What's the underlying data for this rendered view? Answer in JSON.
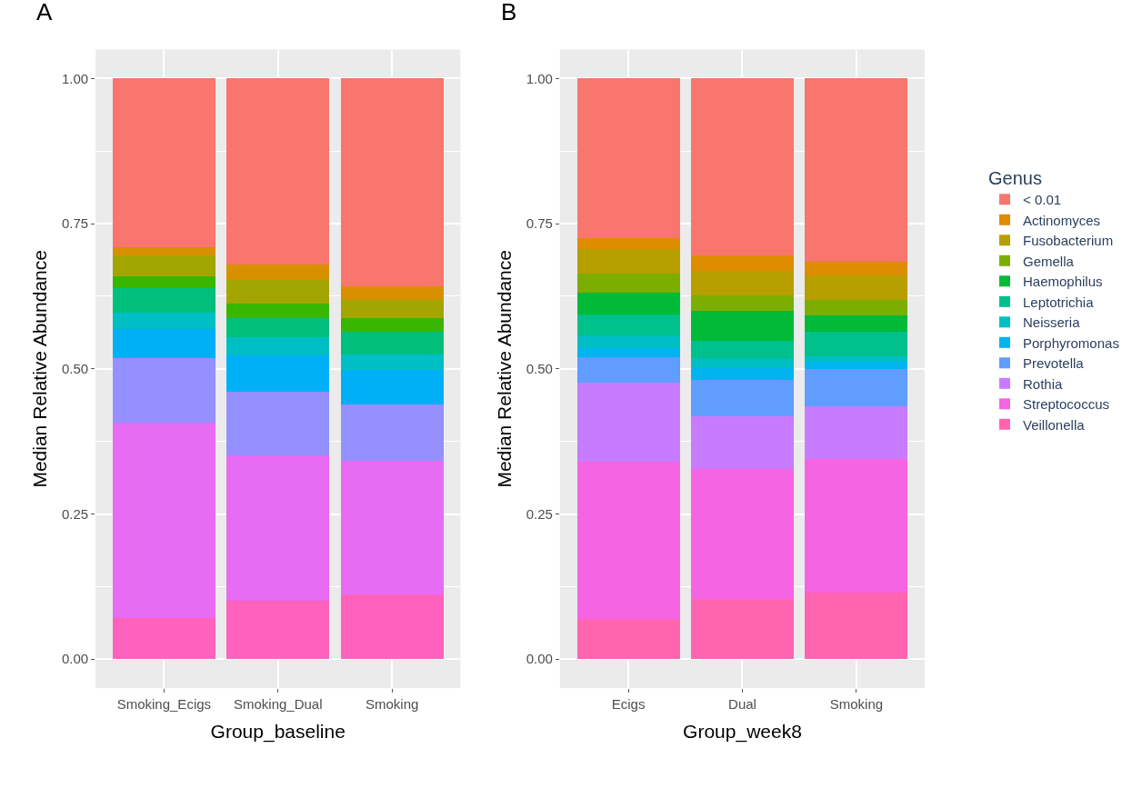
{
  "chart_data": [
    {
      "type": "bar",
      "title": "A",
      "xlabel": "Group_baseline",
      "ylabel": "Median Relative Abundance",
      "stacked": true,
      "categories": [
        "Smoking_Ecigs",
        "Smoking_Dual",
        "Smoking"
      ],
      "ylim": [
        -0.05,
        1.05
      ],
      "yticks": [
        {
          "value": 0,
          "label": "0.00"
        },
        {
          "value": 0.25,
          "label": "0.25"
        },
        {
          "value": 0.5,
          "label": "0.50"
        },
        {
          "value": 0.75,
          "label": "0.75"
        },
        {
          "value": 1,
          "label": "1.00"
        }
      ],
      "grid": true,
      "legend": false,
      "series": [
        {
          "color": "#ff62bc",
          "values": [
            0.07,
            0.101,
            0.112
          ]
        },
        {
          "color": "#e76bf3",
          "values": [
            0.337,
            0.25,
            0.229
          ]
        },
        {
          "color": "#9590ff",
          "values": [
            0.112,
            0.11,
            0.097
          ]
        },
        {
          "color": "#00b0f6",
          "values": [
            0.05,
            0.062,
            0.06
          ]
        },
        {
          "color": "#00bfc4",
          "values": [
            0.027,
            0.031,
            0.027
          ]
        },
        {
          "color": "#00bf7d",
          "values": [
            0.043,
            0.034,
            0.039
          ]
        },
        {
          "color": "#39b600",
          "values": [
            0.021,
            0.024,
            0.024
          ]
        },
        {
          "color": "#a3a500",
          "values": [
            0.035,
            0.041,
            0.03
          ]
        },
        {
          "color": "#d89000",
          "values": [
            0.015,
            0.027,
            0.024
          ]
        },
        {
          "color": "#f8766d",
          "values": [
            0.29,
            0.32,
            0.358
          ]
        }
      ]
    },
    {
      "type": "bar",
      "title": "B",
      "xlabel": "Group_week8",
      "ylabel": "Median Relative Abundance",
      "legend_title": "Genus",
      "stacked": true,
      "categories": [
        "Ecigs",
        "Dual",
        "Smoking"
      ],
      "ylim": [
        -0.05,
        1.05
      ],
      "yticks": [
        {
          "value": 0,
          "label": "0.00"
        },
        {
          "value": 0.25,
          "label": "0.25"
        },
        {
          "value": 0.5,
          "label": "0.50"
        },
        {
          "value": 0.75,
          "label": "0.75"
        },
        {
          "value": 1,
          "label": "1.00"
        }
      ],
      "grid": true,
      "legend": "right",
      "series": [
        {
          "name": "Veillonella",
          "color": "#ff64b0",
          "values": [
            0.069,
            0.103,
            0.115
          ]
        },
        {
          "name": "Streptococcus",
          "color": "#f564e3",
          "values": [
            0.271,
            0.224,
            0.23
          ]
        },
        {
          "name": "Rothia",
          "color": "#c77cff",
          "values": [
            0.137,
            0.091,
            0.09
          ]
        },
        {
          "name": "Prevotella",
          "color": "#619cff",
          "values": [
            0.043,
            0.063,
            0.064
          ]
        },
        {
          "name": "Porphyromonas",
          "color": "#00b4f0",
          "values": [
            0.016,
            0.021,
            0.014
          ]
        },
        {
          "name": "Neisseria",
          "color": "#00bfc4",
          "values": [
            0.022,
            0.016,
            0.008
          ]
        },
        {
          "name": "Leptotrichia",
          "color": "#00c08b",
          "values": [
            0.036,
            0.031,
            0.043
          ]
        },
        {
          "name": "Haemophilus",
          "color": "#00ba38",
          "values": [
            0.038,
            0.051,
            0.028
          ]
        },
        {
          "name": "Gemella",
          "color": "#7cae00",
          "values": [
            0.032,
            0.027,
            0.027
          ]
        },
        {
          "name": "Fusobacterium",
          "color": "#b79f00",
          "values": [
            0.042,
            0.042,
            0.042
          ]
        },
        {
          "name": "Actinomyces",
          "color": "#de8c00",
          "values": [
            0.019,
            0.026,
            0.023
          ]
        },
        {
          "name": "< 0.01",
          "color": "#f8766d",
          "values": [
            0.275,
            0.305,
            0.316
          ]
        }
      ]
    }
  ]
}
